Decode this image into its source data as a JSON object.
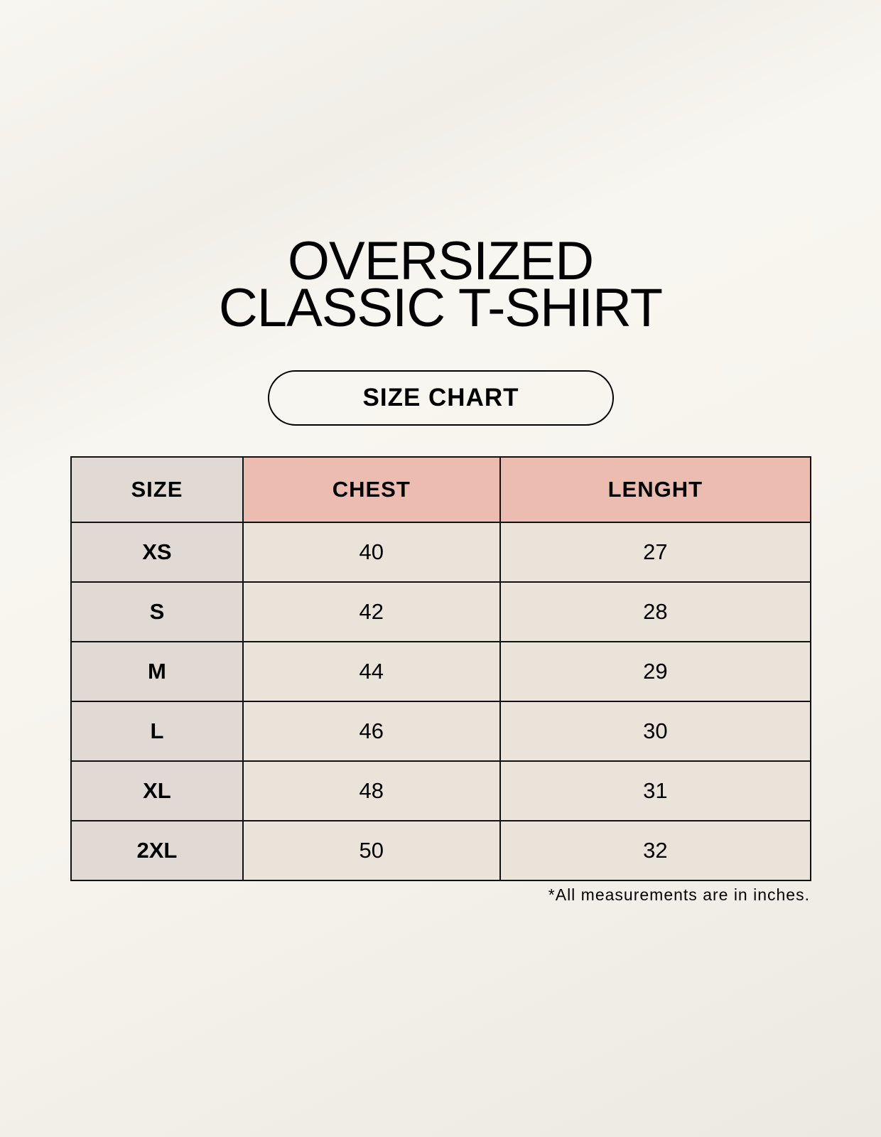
{
  "title_line1": "OVERSIZED",
  "title_line2": "CLASSIC T-SHIRT",
  "subtitle": "SIZE CHART",
  "table": {
    "headers": [
      "SIZE",
      "CHEST",
      "LENGHT"
    ],
    "rows": [
      [
        "XS",
        "40",
        "27"
      ],
      [
        "S",
        "42",
        "28"
      ],
      [
        "M",
        "44",
        "29"
      ],
      [
        "L",
        "46",
        "30"
      ],
      [
        "XL",
        "48",
        "31"
      ],
      [
        "2XL",
        "50",
        "32"
      ]
    ]
  },
  "footnote": "*All measurements are in inches.",
  "colors": {
    "header_accent": "#edbcb0",
    "size_column": "#e0d9d4",
    "cell": "#eae3d9"
  }
}
